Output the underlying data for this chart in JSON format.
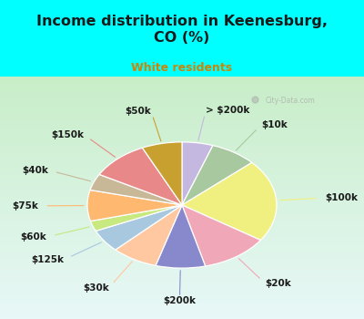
{
  "title": "Income distribution in Keenesburg,\nCO (%)",
  "subtitle": "White residents",
  "title_color": "#1a1a1a",
  "subtitle_color": "#c8860a",
  "bg_color": "#00ffff",
  "chart_bg_top": "#c8eec8",
  "chart_bg_bottom": "#e8f8f8",
  "labels": [
    "> $200k",
    "$10k",
    "$100k",
    "$20k",
    "$200k",
    "$30k",
    "$125k",
    "$60k",
    "$75k",
    "$40k",
    "$150k",
    "$50k"
  ],
  "values": [
    5.0,
    7.5,
    20.0,
    11.0,
    8.0,
    7.5,
    5.5,
    2.5,
    7.5,
    4.0,
    9.5,
    6.5
  ],
  "colors": [
    "#c4b8e0",
    "#a8c8a0",
    "#f0f080",
    "#f0a8b8",
    "#8888cc",
    "#ffc8a0",
    "#a8c8e0",
    "#c8e880",
    "#ffb870",
    "#c8b898",
    "#e88888",
    "#c8a030"
  ],
  "startangle": 90,
  "label_fontsize": 7.5,
  "label_color": "#1a1a1a",
  "watermark": "City-Data.com"
}
